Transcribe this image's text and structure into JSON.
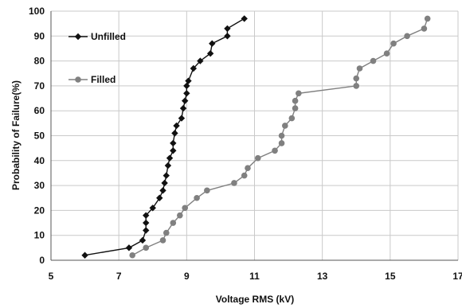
{
  "chart_data": {
    "type": "line",
    "xlabel": "Voltage RMS (kV)",
    "ylabel": "Probability of Failure(%)",
    "xlim": [
      5,
      17
    ],
    "ylim": [
      0,
      100
    ],
    "xticks": [
      5,
      7,
      9,
      11,
      13,
      15,
      17
    ],
    "yticks": [
      0,
      10,
      20,
      30,
      40,
      50,
      60,
      70,
      80,
      90,
      100
    ],
    "grid": true,
    "legend_position": "top-left",
    "series": [
      {
        "name": "Unfilled",
        "color": "#111111",
        "marker": "diamond",
        "points": [
          [
            6.0,
            2
          ],
          [
            7.3,
            5
          ],
          [
            7.7,
            8
          ],
          [
            7.8,
            12
          ],
          [
            7.8,
            15
          ],
          [
            7.8,
            18
          ],
          [
            8.0,
            21
          ],
          [
            8.2,
            25
          ],
          [
            8.3,
            28
          ],
          [
            8.35,
            31
          ],
          [
            8.4,
            34
          ],
          [
            8.45,
            38
          ],
          [
            8.5,
            41
          ],
          [
            8.6,
            44
          ],
          [
            8.6,
            47
          ],
          [
            8.65,
            51
          ],
          [
            8.7,
            54
          ],
          [
            8.85,
            57
          ],
          [
            8.9,
            61
          ],
          [
            8.95,
            64
          ],
          [
            9.0,
            67
          ],
          [
            9.0,
            70
          ],
          [
            9.05,
            72
          ],
          [
            9.2,
            77
          ],
          [
            9.4,
            80
          ],
          [
            9.7,
            83
          ],
          [
            9.75,
            87
          ],
          [
            10.2,
            90
          ],
          [
            10.2,
            93
          ],
          [
            10.7,
            97
          ]
        ]
      },
      {
        "name": "Filled",
        "color": "#808080",
        "marker": "circle",
        "points": [
          [
            7.4,
            2
          ],
          [
            7.8,
            5
          ],
          [
            8.3,
            8
          ],
          [
            8.4,
            11
          ],
          [
            8.6,
            15
          ],
          [
            8.8,
            18
          ],
          [
            8.95,
            21
          ],
          [
            9.3,
            25
          ],
          [
            9.6,
            28
          ],
          [
            10.4,
            31
          ],
          [
            10.7,
            34
          ],
          [
            10.8,
            37
          ],
          [
            11.1,
            41
          ],
          [
            11.6,
            44
          ],
          [
            11.8,
            47
          ],
          [
            11.8,
            50
          ],
          [
            11.9,
            54
          ],
          [
            12.1,
            57
          ],
          [
            12.2,
            61
          ],
          [
            12.2,
            64
          ],
          [
            12.3,
            67
          ],
          [
            14.0,
            70
          ],
          [
            14.0,
            73
          ],
          [
            14.1,
            77
          ],
          [
            14.5,
            80
          ],
          [
            14.9,
            83
          ],
          [
            15.1,
            87
          ],
          [
            15.5,
            90
          ],
          [
            16.0,
            93
          ],
          [
            16.1,
            97
          ]
        ]
      }
    ]
  }
}
